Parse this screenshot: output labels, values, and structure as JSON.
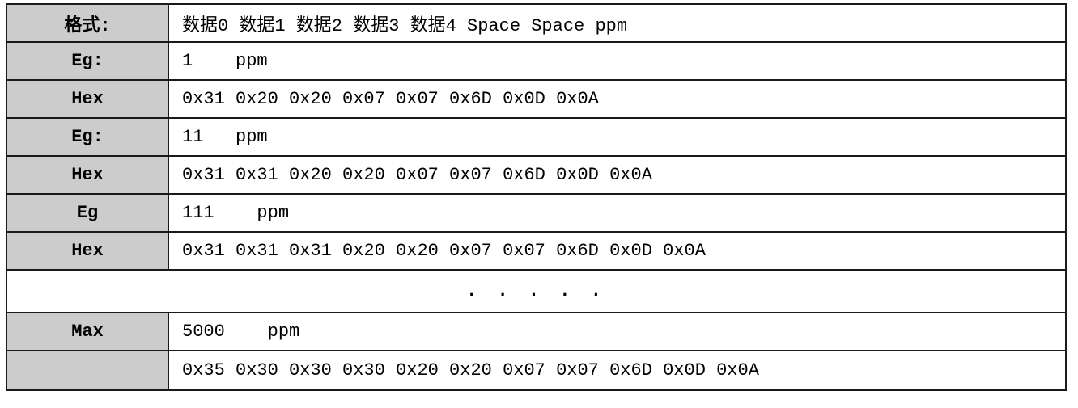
{
  "colors": {
    "label_cell_bg": "#cccccc",
    "border": "#1a1a1a",
    "content_bg": "#ffffff",
    "text": "#000000"
  },
  "table": {
    "rows": [
      {
        "label": "格式:",
        "content": "数据0 数据1 数据2 数据3 数据4 Space Space ppm"
      },
      {
        "label": "Eg:",
        "content": "1    ppm"
      },
      {
        "label": "Hex",
        "content": "0x31 0x20 0x20 0x07 0x07 0x6D 0x0D 0x0A"
      },
      {
        "label": "Eg:",
        "content": "11   ppm"
      },
      {
        "label": "Hex",
        "content": "0x31 0x31 0x20 0x20 0x07 0x07 0x6D 0x0D 0x0A"
      },
      {
        "label": "Eg",
        "content": "111    ppm"
      },
      {
        "label": "Hex",
        "content": "0x31 0x31 0x31 0x20 0x20 0x07 0x07 0x6D 0x0D 0x0A"
      },
      {
        "label": "",
        "content": ". . . . .",
        "span": true
      },
      {
        "label": "Max",
        "content": "5000    ppm"
      },
      {
        "label": "",
        "content": "0x35 0x30 0x30 0x30 0x20 0x20 0x07 0x07 0x6D 0x0D 0x0A"
      }
    ]
  }
}
